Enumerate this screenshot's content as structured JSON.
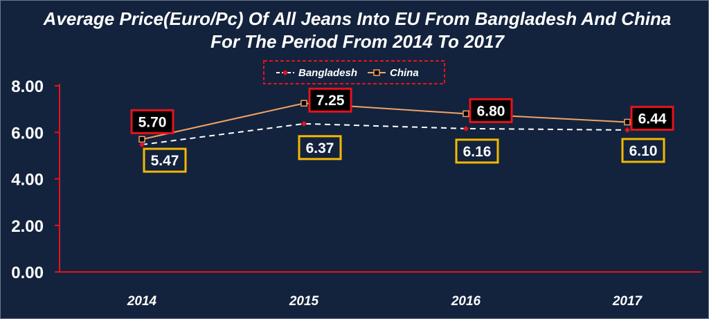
{
  "colors": {
    "background": "#13233d",
    "axis": "#e8121b",
    "china_line": "#f2a365",
    "bangladesh_line": "#ffffff",
    "bangladesh_marker": "#e8121b",
    "china_label_border": "#e8121b",
    "bangladesh_label_border": "#f5b800"
  },
  "chart_data": {
    "type": "line",
    "title": "Average Price(Euro/Pc) Of All Jeans Into EU From Bangladesh And China For The Period From 2014 To 2017",
    "categories": [
      "2014",
      "2015",
      "2016",
      "2017"
    ],
    "yticks": [
      "0.00",
      "2.00",
      "4.00",
      "6.00",
      "8.00"
    ],
    "ylim": [
      0,
      8
    ],
    "legend_position": "top",
    "series": [
      {
        "name": "Bangladesh",
        "values": [
          5.47,
          6.37,
          6.16,
          6.1
        ],
        "labels": [
          "5.47",
          "6.37",
          "6.16",
          "6.10"
        ],
        "style": "dashed"
      },
      {
        "name": "China",
        "values": [
          5.7,
          7.25,
          6.8,
          6.44
        ],
        "labels": [
          "5.70",
          "7.25",
          "6.80",
          "6.44"
        ],
        "style": "solid"
      }
    ]
  }
}
